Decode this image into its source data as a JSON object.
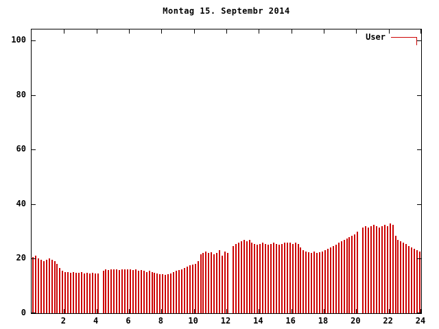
{
  "chart_data": {
    "type": "bar",
    "title": "Montag 15. Septembr 2014",
    "xlabel": "",
    "ylabel": "",
    "x_unit": "hour_of_day",
    "x_range": [
      0,
      24
    ],
    "x_ticks": [
      2,
      4,
      6,
      8,
      10,
      12,
      14,
      16,
      18,
      20,
      22,
      24
    ],
    "y_ticks": [
      0,
      20,
      40,
      60,
      80,
      100
    ],
    "ylim": [
      0,
      104
    ],
    "grid": false,
    "legend_position": "top-right",
    "bar_style": "impulses",
    "background_color": "#ffffff",
    "axis_color": "#000000",
    "sample_interval_minutes": 10,
    "series": [
      {
        "name": "User",
        "color": "#cc0000",
        "values": [
          20.5,
          21,
          20,
          19.5,
          19,
          19.5,
          20,
          19.5,
          19,
          18,
          16.5,
          15.5,
          15,
          15,
          14.8,
          15,
          14.7,
          14.8,
          15,
          14.6,
          14.8,
          14.5,
          14.7,
          14.6,
          14.5,
          0,
          15.5,
          16,
          15.8,
          16,
          16.2,
          16,
          15.8,
          16,
          16.2,
          16,
          16,
          15.8,
          16,
          15.5,
          15.8,
          15.5,
          15.2,
          15.5,
          15,
          14.8,
          14.5,
          14.3,
          14.2,
          14,
          14.3,
          14.5,
          15,
          15.5,
          15.8,
          16,
          16.5,
          17,
          17.5,
          17.8,
          18,
          19,
          21.5,
          22,
          22.5,
          22,
          22.3,
          21.5,
          22,
          23,
          21,
          22.5,
          22,
          0,
          24.5,
          25.5,
          26,
          26.5,
          27,
          26.5,
          27,
          26,
          25.5,
          25,
          25.5,
          26,
          25.5,
          25,
          25.5,
          26,
          25.5,
          25,
          25.5,
          26,
          25.8,
          26,
          25.5,
          26,
          25.5,
          24,
          23,
          22.5,
          22.3,
          22,
          22.5,
          22,
          22.3,
          22.5,
          23,
          23.5,
          24,
          24.5,
          25,
          26,
          26.5,
          27,
          27.5,
          28,
          28.5,
          29,
          30,
          0,
          31.5,
          32,
          31.5,
          32,
          32.5,
          32,
          31.5,
          32,
          32.5,
          32,
          33,
          32.5,
          28.5,
          27,
          26.5,
          26,
          25.5,
          24.5,
          24,
          23.5,
          23,
          22.5
        ]
      }
    ]
  }
}
